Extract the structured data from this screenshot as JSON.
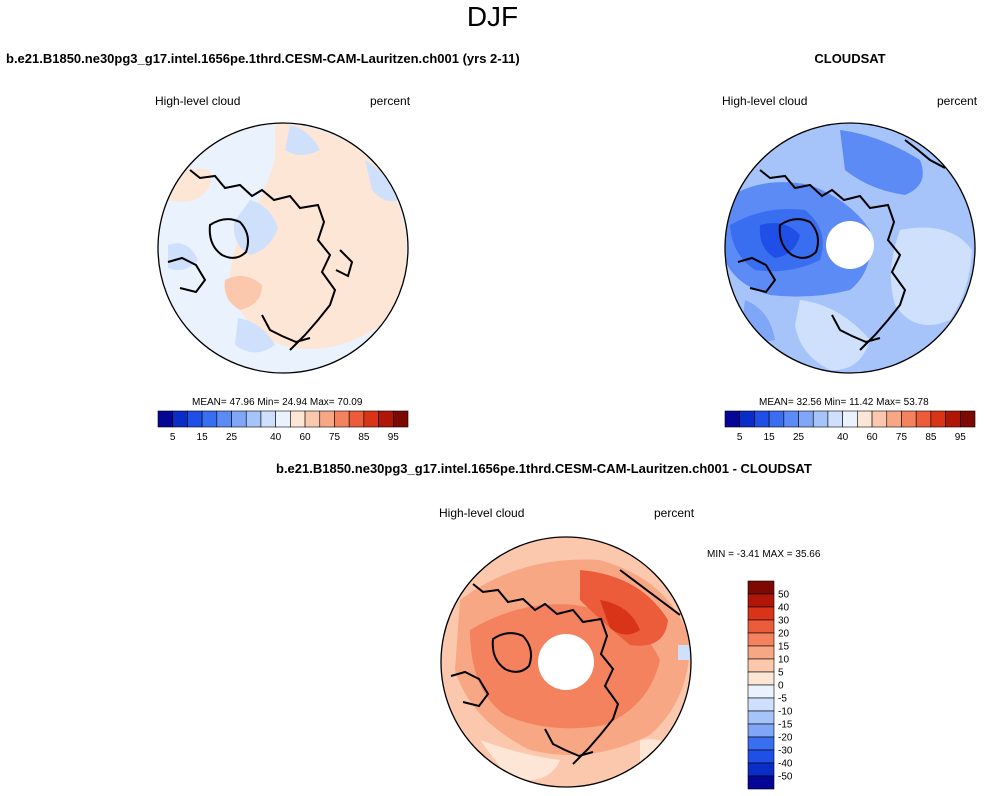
{
  "page": {
    "season": "DJF"
  },
  "panels": {
    "model": {
      "name": "b.e21.B1850.ne30pg3_g17.intel.1656pe.1thrd.CESM-CAM-Lauritzen.ch001 (yrs 2-11)",
      "variable": "High-level cloud",
      "units": "percent",
      "mean_label": "MEAN=",
      "mean": "47.96",
      "min_label": "Min=",
      "min": "24.94",
      "max_label": "Max=",
      "max": "70.09"
    },
    "obs": {
      "name": "CLOUDSAT",
      "variable": "High-level cloud",
      "units": "percent",
      "mean_label": "MEAN=",
      "mean": "32.56",
      "min_label": "Min=",
      "min": "11.42",
      "max_label": "Max=",
      "max": "53.78"
    },
    "diff": {
      "name": "b.e21.B1850.ne30pg3_g17.intel.1656pe.1thrd.CESM-CAM-Lauritzen.ch001 - CLOUDSAT",
      "variable": "High-level cloud",
      "units": "percent",
      "min_label": "MIN =",
      "min": "-3.41",
      "max_label": "MAX =",
      "max": "35.66"
    }
  },
  "chart_data": [
    {
      "type": "heatmap",
      "projection": "north polar stereographic",
      "title": "b.e21.B1850.ne30pg3_g17.intel.1656pe.1thrd.CESM-CAM-Lauritzen.ch001 (yrs 2-11)",
      "variable": "High-level cloud",
      "units": "percent",
      "stats": {
        "mean": 47.96,
        "min": 24.94,
        "max": 70.09
      },
      "colorbar": {
        "levels": [
          5,
          10,
          15,
          20,
          25,
          30,
          35,
          40,
          50,
          60,
          70,
          75,
          80,
          85,
          90,
          95
        ],
        "tick_labels": [
          "5",
          "15",
          "25",
          "40",
          "60",
          "75",
          "85",
          "95"
        ],
        "colors": [
          "#050596",
          "#0a2dc8",
          "#1f4fe6",
          "#3a6ef0",
          "#5c8bf5",
          "#7fa6f7",
          "#a6c3fa",
          "#cfe0fc",
          "#eaf2fe",
          "#fde6d6",
          "#fbc8ae",
          "#f8a784",
          "#f4825e",
          "#ec5c3a",
          "#d93417",
          "#b01606",
          "#7d0a02"
        ]
      }
    },
    {
      "type": "heatmap",
      "projection": "north polar stereographic",
      "title": "CLOUDSAT",
      "variable": "High-level cloud",
      "units": "percent",
      "stats": {
        "mean": 32.56,
        "min": 11.42,
        "max": 53.78
      },
      "colorbar": {
        "levels": [
          5,
          10,
          15,
          20,
          25,
          30,
          35,
          40,
          50,
          60,
          70,
          75,
          80,
          85,
          90,
          95
        ],
        "tick_labels": [
          "5",
          "15",
          "25",
          "40",
          "60",
          "75",
          "85",
          "95"
        ],
        "colors": [
          "#050596",
          "#0a2dc8",
          "#1f4fe6",
          "#3a6ef0",
          "#5c8bf5",
          "#7fa6f7",
          "#a6c3fa",
          "#cfe0fc",
          "#eaf2fe",
          "#fde6d6",
          "#fbc8ae",
          "#f8a784",
          "#f4825e",
          "#ec5c3a",
          "#d93417",
          "#b01606",
          "#7d0a02"
        ]
      }
    },
    {
      "type": "heatmap",
      "projection": "north polar stereographic",
      "title": "b.e21.B1850.ne30pg3_g17.intel.1656pe.1thrd.CESM-CAM-Lauritzen.ch001 - CLOUDSAT",
      "variable": "High-level cloud",
      "units": "percent",
      "stats": {
        "min": -3.41,
        "max": 35.66
      },
      "colorbar": {
        "orientation": "vertical",
        "levels": [
          50,
          40,
          30,
          20,
          15,
          10,
          5,
          0,
          -5,
          -10,
          -15,
          -20,
          -30,
          -40,
          -50
        ],
        "tick_labels": [
          "50",
          "40",
          "30",
          "20",
          "15",
          "10",
          "5",
          "0",
          "-5",
          "-10",
          "-15",
          "-20",
          "-30",
          "-40",
          "-50"
        ],
        "colors": [
          "#7d0a02",
          "#b01606",
          "#d93417",
          "#ec5c3a",
          "#f4825e",
          "#f8a784",
          "#fbc8ae",
          "#fde6d6",
          "#eaf2fe",
          "#cfe0fc",
          "#a6c3fa",
          "#7fa6f7",
          "#3a6ef0",
          "#1f4fe6",
          "#0a2dc8",
          "#050596"
        ]
      }
    }
  ]
}
